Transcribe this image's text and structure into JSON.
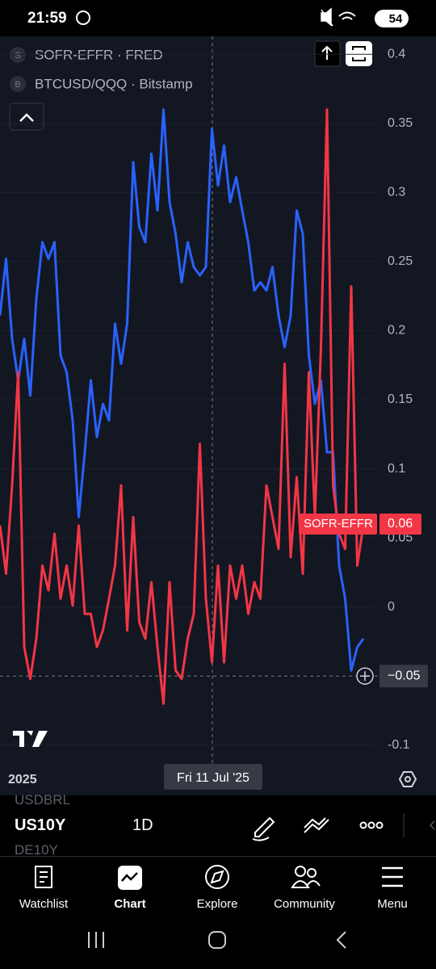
{
  "status_bar": {
    "time": "21:59",
    "battery": "54"
  },
  "chart_data": {
    "type": "line",
    "series": [
      {
        "name": "SOFR-EFFR · FRED",
        "icon": "S",
        "tag": "SOFR-EFFR",
        "last_value": 0.06,
        "color": "#f23645",
        "values": [
          0.059,
          0.024,
          0.088,
          0.17,
          -0.029,
          -0.052,
          -0.023,
          0.03,
          0.012,
          0.053,
          0.006,
          0.03,
          0.001,
          0.059,
          -0.005,
          -0.005,
          -0.029,
          -0.017,
          0.006,
          0.03,
          0.088,
          -0.017,
          0.065,
          -0.011,
          -0.023,
          0.018,
          -0.029,
          -0.07,
          0.018,
          -0.046,
          -0.052,
          -0.023,
          -0.005,
          0.118,
          0.006,
          -0.04,
          0.03,
          -0.04,
          0.03,
          0.006,
          0.03,
          -0.005,
          0.018,
          0.006,
          0.088,
          0.065,
          0.042,
          0.176,
          0.036,
          0.094,
          0.024,
          0.17,
          0.065,
          0.188,
          0.36,
          0.088,
          0.053,
          0.042,
          0.232,
          0.03,
          0.059
        ]
      },
      {
        "name": "BTCUSD/QQQ · Bitstamp",
        "icon": "B",
        "color": "#2962ff",
        "values": [
          0.211,
          0.252,
          0.194,
          0.164,
          0.194,
          0.153,
          0.223,
          0.264,
          0.252,
          0.264,
          0.182,
          0.17,
          0.135,
          0.065,
          0.112,
          0.164,
          0.123,
          0.147,
          0.135,
          0.205,
          0.176,
          0.205,
          0.322,
          0.275,
          0.264,
          0.328,
          0.287,
          0.36,
          0.293,
          0.27,
          0.235,
          0.264,
          0.246,
          0.24,
          0.246,
          0.346,
          0.305,
          0.334,
          0.293,
          0.311,
          0.287,
          0.264,
          0.229,
          0.235,
          0.229,
          0.246,
          0.211,
          0.188,
          0.211,
          0.287,
          0.27,
          0.182,
          0.147,
          0.164,
          0.112,
          0.112,
          0.03,
          0.006,
          -0.046,
          -0.029,
          -0.023
        ]
      }
    ],
    "ylim": [
      -0.113,
      0.413
    ],
    "yticks": [
      0.4,
      0.35,
      0.3,
      0.25,
      0.2,
      0.15,
      0.1,
      0.05,
      0,
      -0.1
    ],
    "x_axis_label": "2025",
    "crosshair": {
      "x_label": "Fri 11 Jul '25",
      "y": {
        "value": -0.05,
        "label": "−0.05"
      }
    }
  },
  "toolbar": {
    "prev_symbol": "USDBRL",
    "symbol": "US10Y",
    "interval": "1D",
    "next_symbol": "DE10Y"
  },
  "nav": [
    "Watchlist",
    "Chart",
    "Explore",
    "Community",
    "Menu"
  ]
}
